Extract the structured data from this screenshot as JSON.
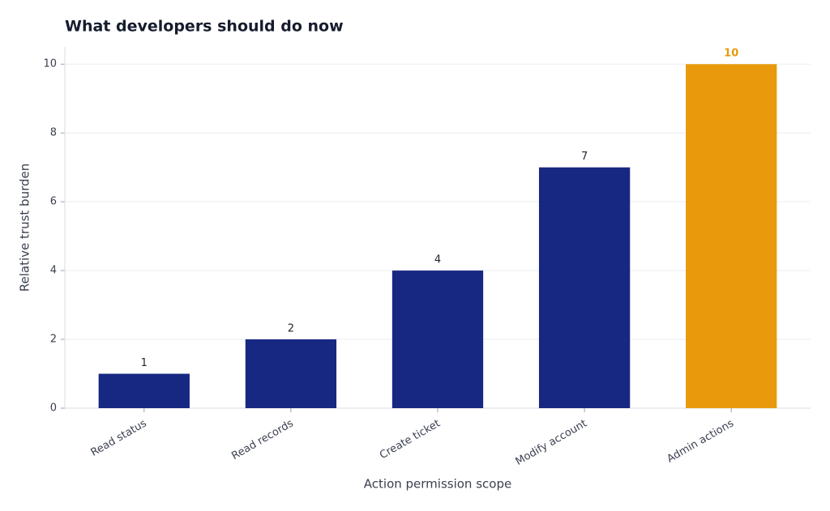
{
  "chart_data": {
    "type": "bar",
    "title": "What developers should do now",
    "x_label": "Action permission scope",
    "y_label": "Relative trust burden",
    "categories": [
      "Read status",
      "Read records",
      "Create ticket",
      "Modify account",
      "Admin actions"
    ],
    "values": [
      1,
      2,
      4,
      7,
      10
    ],
    "colors": [
      "#172882",
      "#172882",
      "#172882",
      "#172882",
      "#e89a0c"
    ],
    "label_colors": [
      "#1f2430",
      "#1f2430",
      "#1f2430",
      "#1f2430",
      "#e89a0c"
    ],
    "ylim": [
      0,
      10.5
    ],
    "yticks": [
      0,
      2,
      4,
      6,
      8,
      10
    ],
    "grid": true
  }
}
